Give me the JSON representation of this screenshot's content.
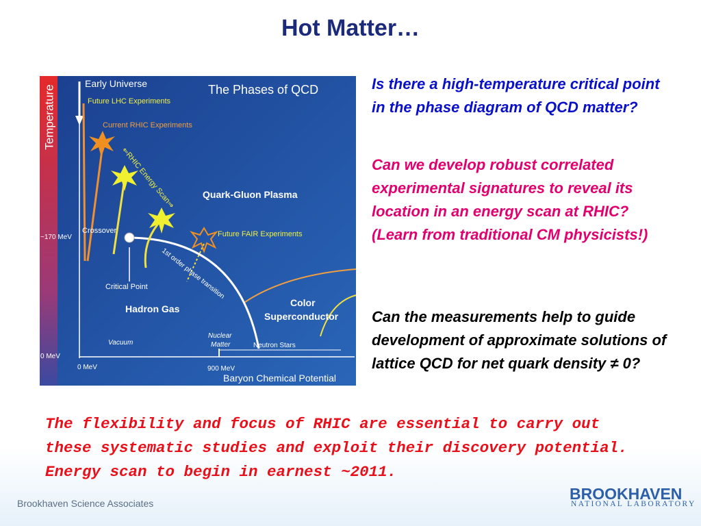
{
  "title": "Hot Matter…",
  "diagram": {
    "title": "The Phases of QCD",
    "axis_temperature": "Temperature",
    "axis_baryon": "Baryon Chemical Potential",
    "early_universe": "Early Universe",
    "future_lhc": "Future LHC Experiments",
    "current_rhic": "Current RHIC Experiments",
    "energy_scan": "⇐RHIC Energy Scan⇒",
    "qgp": "Quark-Gluon Plasma",
    "crossover": "Crossover",
    "t_170": "~170 MeV",
    "future_fair": "Future FAIR Experiments",
    "first_order": "1st order phase transition",
    "critical_point": "Critical Point",
    "hadron_gas": "Hadron Gas",
    "color_superconductor": [
      "Color",
      "Superconductor"
    ],
    "vacuum": "Vacuum",
    "nuclear_matter": [
      "Nuclear",
      "Matter"
    ],
    "neutron_stars": "Neutron Stars",
    "t_0": "0 MeV",
    "mu_0": "0 MeV",
    "mu_900": "900 MeV"
  },
  "questions": [
    "Is there a high-temperature critical point in the phase diagram of QCD matter?",
    "Can we develop robust correlated experimental signatures to reveal its location in an energy scan at RHIC? (Learn from traditional CM physicists!)",
    "Can the measurements help to guide development of approximate solutions of lattice QCD for net quark density ≠ 0?"
  ],
  "conclusion": [
    "The flexibility and focus of RHIC are essential to carry out",
    "these systematic studies and exploit their discovery potential.",
    "Energy scan to begin in earnest ~2011."
  ],
  "footer": {
    "org": "Brookhaven Science Associates",
    "logo": "BROOKHAVEN",
    "logo_sub": "NATIONAL LABORATORY"
  }
}
